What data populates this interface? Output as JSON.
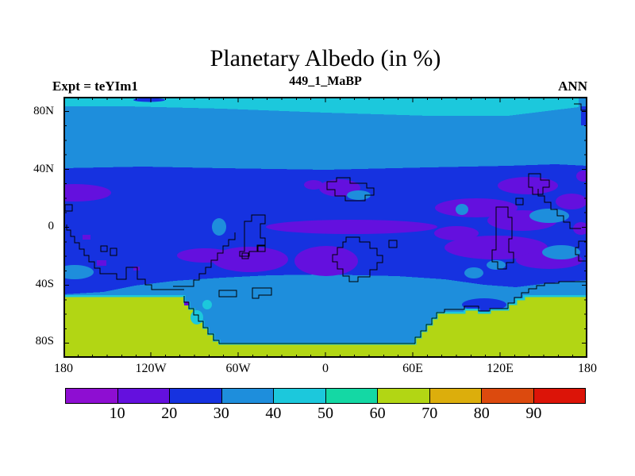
{
  "header": {
    "title": "Planetary Albedo (in %)",
    "subtitle": "449_1_MaBP",
    "experiment_label": "Expt = teYIm1",
    "season_label": "ANN"
  },
  "axes": {
    "x_tick_labels": [
      "180",
      "120W",
      "60W",
      "0",
      "60E",
      "120E",
      "180"
    ],
    "y_tick_labels": [
      "80N",
      "40N",
      "0",
      "40S",
      "80S"
    ]
  },
  "colorbar": {
    "tick_labels": [
      "10",
      "20",
      "30",
      "40",
      "50",
      "60",
      "70",
      "80",
      "90"
    ],
    "colors": [
      "#8e0ed2",
      "#6410de",
      "#1632e0",
      "#1e8edc",
      "#1cc8dc",
      "#14d8a4",
      "#b2d614",
      "#dcae0c",
      "#dc4a0e",
      "#dc1408"
    ]
  },
  "chart_data": {
    "type": "heatmap",
    "title": "Planetary Albedo (in %)",
    "subtitle": "449_1_MaBP",
    "experiment": "teYIm1",
    "season": "ANN",
    "variable": "Planetary Albedo",
    "units": "%",
    "projection": "equirectangular lat-lon map, 180W to 180E, 90S to 90N",
    "x_axis": {
      "label_ticks": [
        "180",
        "120W",
        "60W",
        "0",
        "60E",
        "120E",
        "180"
      ],
      "range_deg": [
        -180,
        180
      ],
      "minor_tick_deg": 10
    },
    "y_axis": {
      "label_ticks": [
        "80N",
        "40N",
        "0",
        "40S",
        "80S"
      ],
      "range_deg": [
        -90,
        90
      ],
      "minor_tick_deg": 10
    },
    "contour_levels": [
      0,
      10,
      20,
      30,
      40,
      50,
      60,
      70,
      80,
      90,
      100
    ],
    "palette_hex": [
      "#8e0ed2",
      "#6410de",
      "#1632e0",
      "#1e8edc",
      "#1cc8dc",
      "#14d8a4",
      "#b2d614",
      "#dcae0c",
      "#dc4a0e",
      "#dc1408"
    ],
    "legend_position": "bottom horizontal colorbar, labels 10-90 at segment boundaries",
    "overlay": "black stepped coastline contours",
    "grid": "off",
    "regions": [
      {
        "area": "polar cap 82N-90N",
        "albedo_pct": "40-50"
      },
      {
        "area": "band 40N-82N",
        "albedo_pct": "30-40"
      },
      {
        "area": "tropics and midlatitudes 38S-40N background",
        "albedo_pct": "20-30"
      },
      {
        "area": "patches near 20N 170W, equatorial lens 10W-110E, 10S-35S over South America, southern Africa, and 60E-150E",
        "albedo_pct": "10-20"
      },
      {
        "area": "small spots at 10N 5E, northwest South America, 30S near 180W, 100E-130E",
        "albedo_pct": "30-40"
      },
      {
        "area": "southern ocean band 40S-55S",
        "albedo_pct": "30-40"
      },
      {
        "area": "Antarctic embayment 100W-55E reaching to about 78S",
        "albedo_pct": "30-40"
      },
      {
        "area": "Antarctica south of about 55S elsewhere",
        "albedo_pct": "60-70"
      }
    ]
  }
}
